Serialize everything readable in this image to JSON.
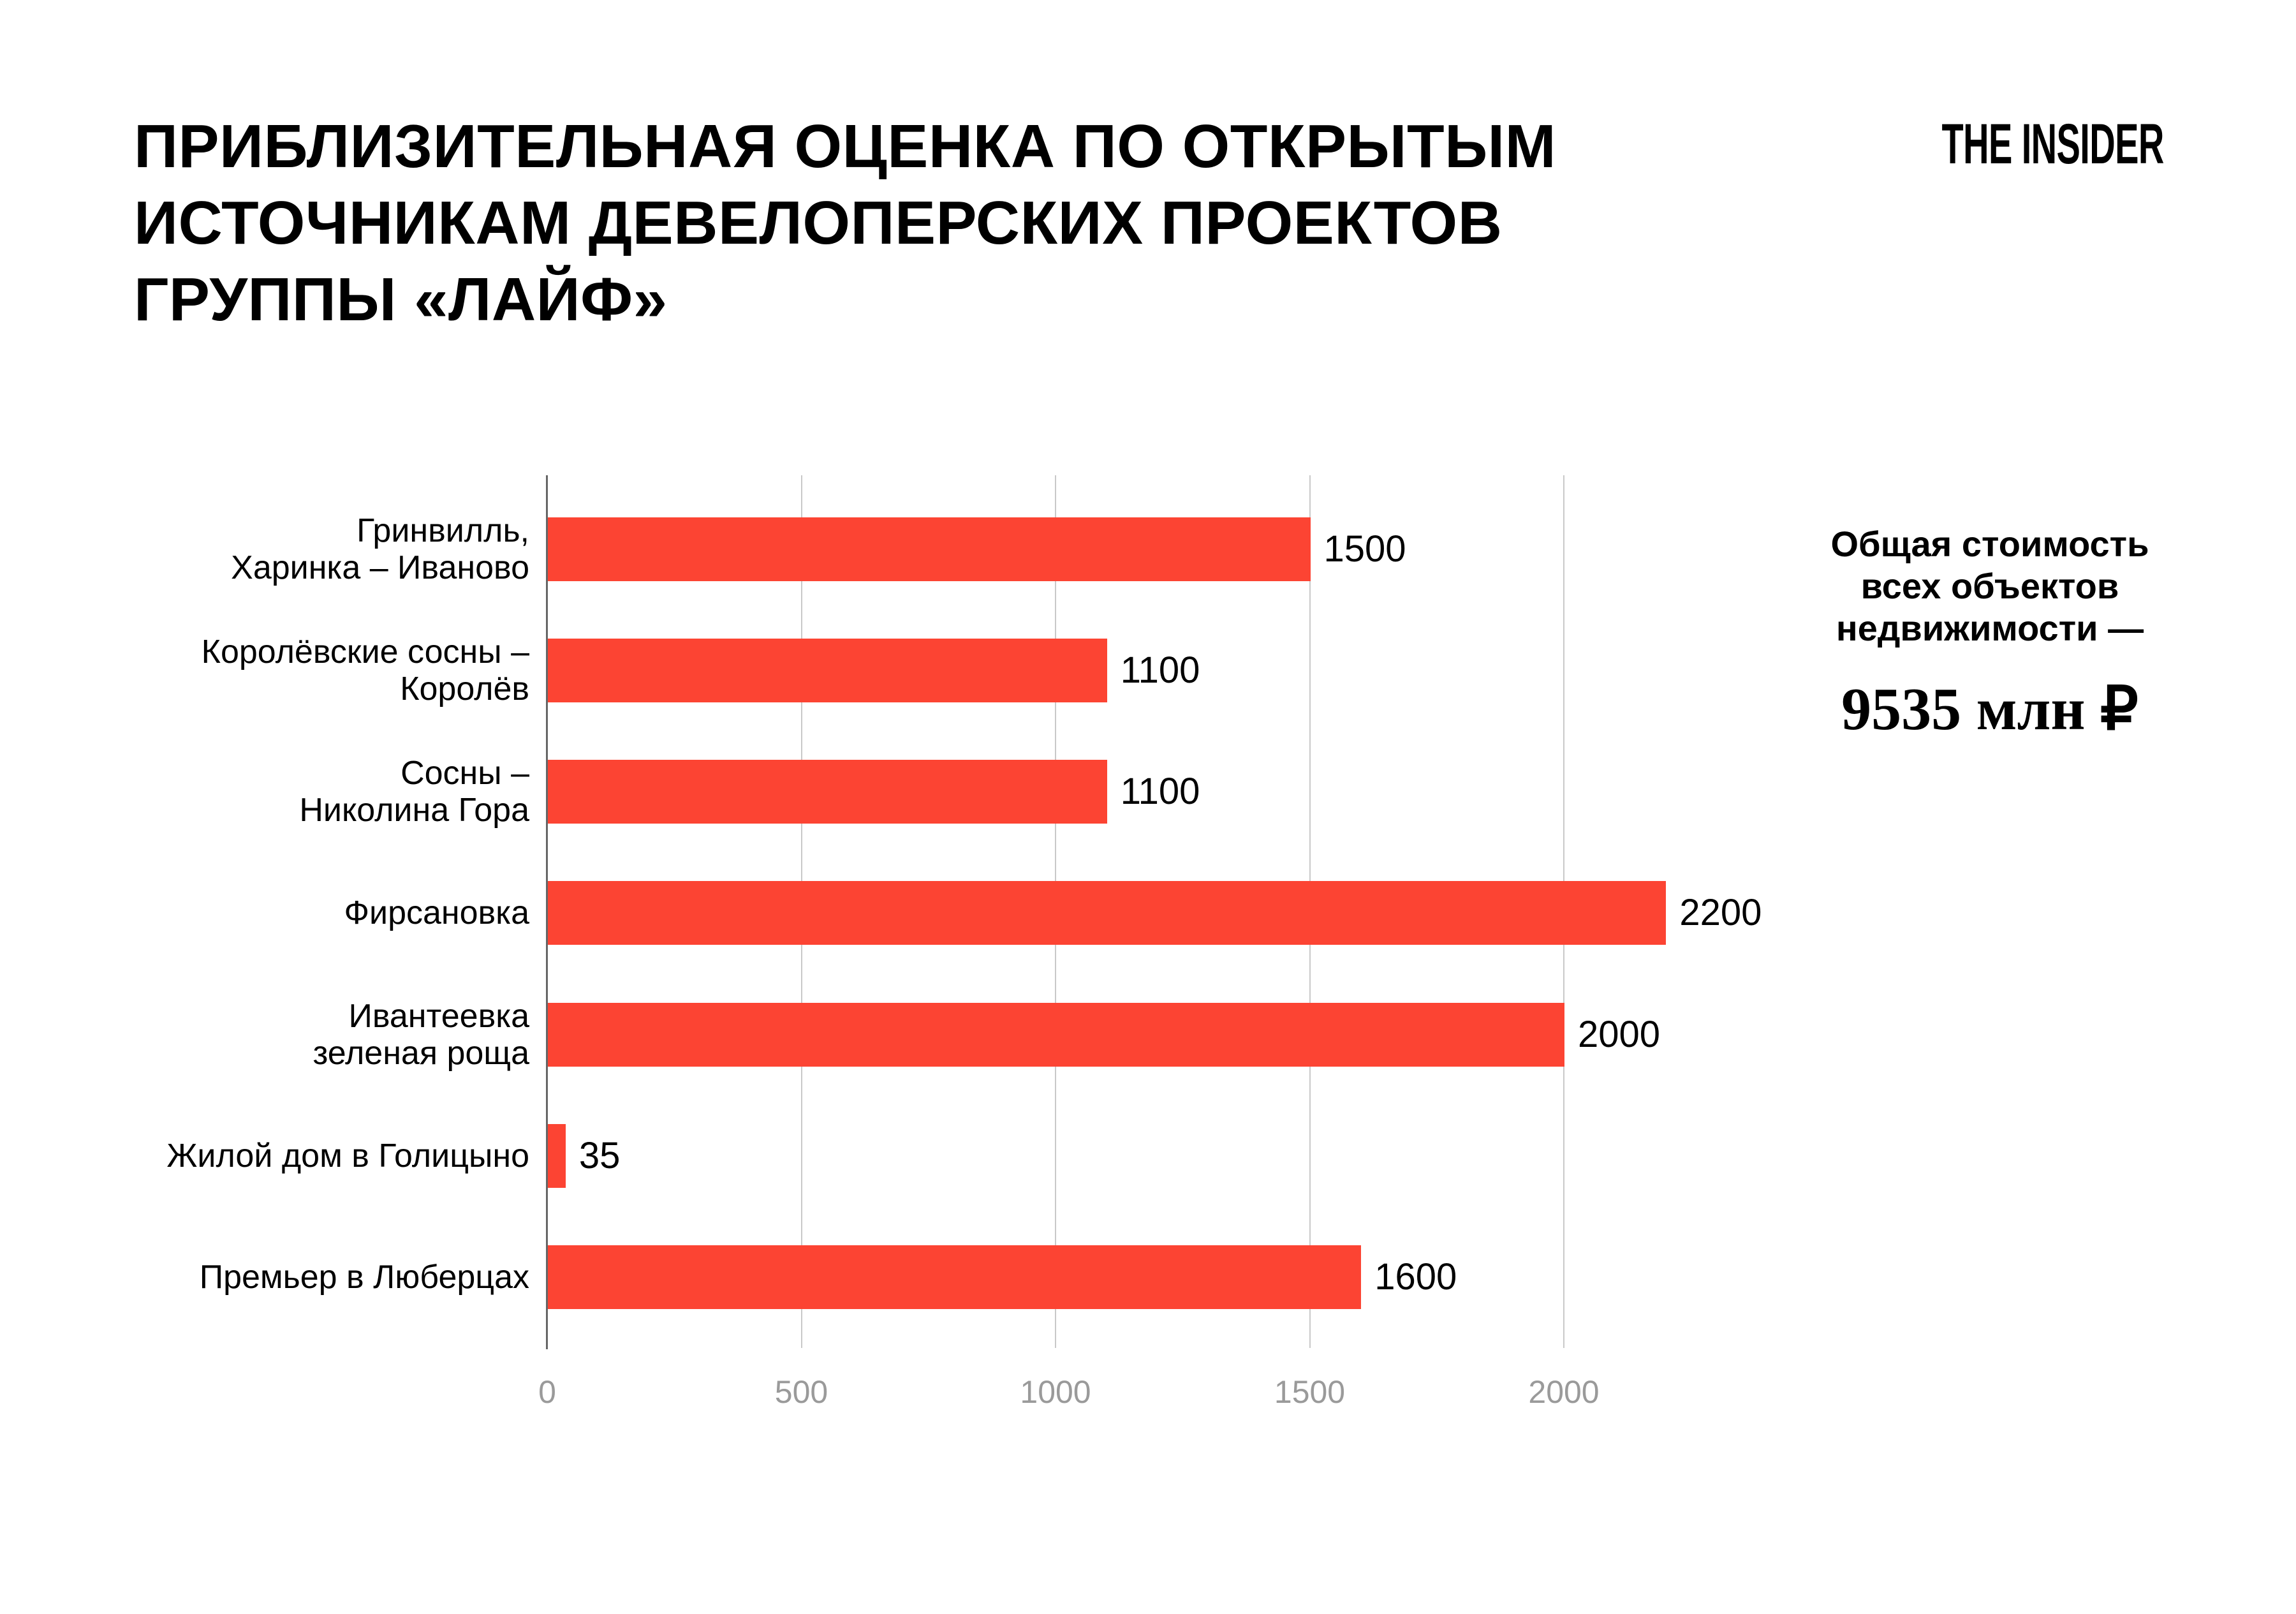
{
  "header": {
    "title_lines": [
      "ПРИБЛИЗИТЕЛЬНАЯ ОЦЕНКА ПО ОТКРЫТЫМ",
      "ИСТОЧНИКАМ ДЕВЕЛОПЕРСКИХ ПРОЕКТОВ",
      "ГРУППЫ «ЛАЙФ»"
    ],
    "logo": "THE INSIDER"
  },
  "chart_data": {
    "type": "bar",
    "orientation": "horizontal",
    "title": "Приблизительная оценка по открытым источникам девелоперских проектов группы «Лайф»",
    "categories": [
      "Гринвилль, Харинка – Иваново",
      "Королёвские сосны – Королёв",
      "Сосны – Николина Гора",
      "Фирсановка",
      "Ивантеевка зеленая роща",
      "Жилой дом в Голицыно",
      "Премьер в Люберцах"
    ],
    "category_lines": [
      [
        "Гринвилль,",
        "Харинка – Иваново"
      ],
      [
        "Королёвские сосны –",
        "Королёв"
      ],
      [
        "Сосны –",
        "Николина Гора"
      ],
      [
        "Фирсановка"
      ],
      [
        "Ивантеевка",
        "зеленая роща"
      ],
      [
        "Жилой дом в Голицыно"
      ],
      [
        "Премьер в Люберцах"
      ]
    ],
    "values": [
      1500,
      1100,
      1100,
      2200,
      2000,
      35,
      1600
    ],
    "value_labels": [
      "1500",
      "1100",
      "1100",
      "2200",
      "2000",
      "35",
      "1600"
    ],
    "x_tick_values": [
      0,
      500,
      1000,
      1500,
      2000
    ],
    "x_ticks": [
      "0",
      "500",
      "1000",
      "1500",
      "2000"
    ],
    "xlim": [
      0,
      2370
    ],
    "grid": "vertical",
    "legend": false,
    "bar_color": "#fc4433",
    "axis_color": "#666666",
    "grid_color": "#c9c9c9",
    "tick_label_color": "#9a9a9a"
  },
  "annotation": {
    "lines": [
      "Общая стоимость",
      "всех объектов",
      "недвижимости —"
    ],
    "value": "9535 млн ₽"
  }
}
